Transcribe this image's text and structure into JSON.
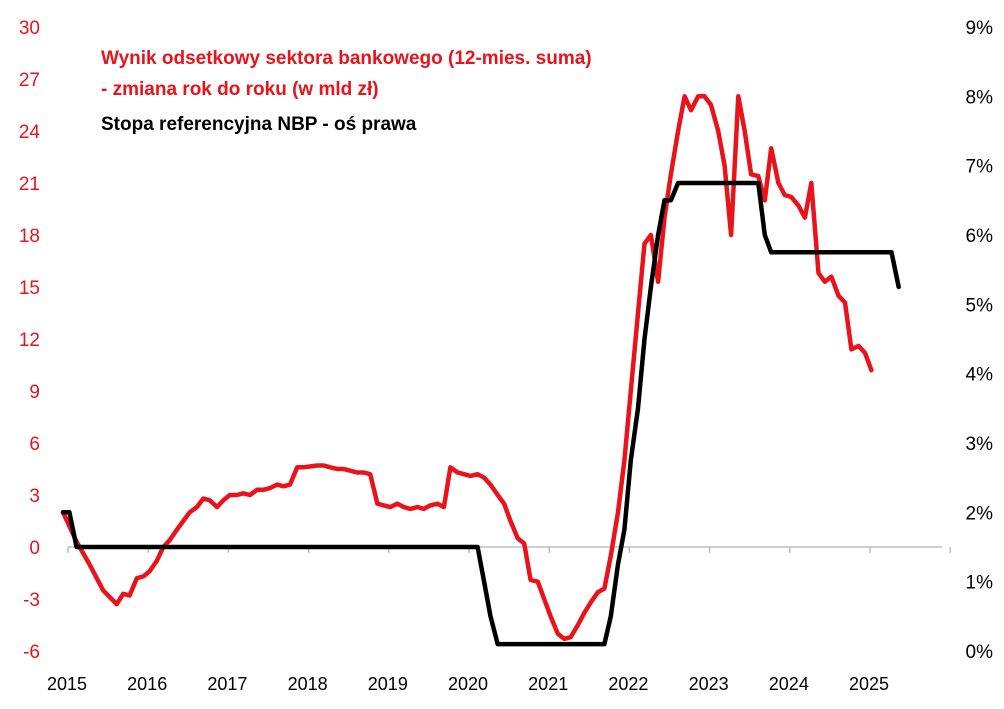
{
  "chart_data": {
    "type": "line",
    "title_lines": [
      "Wynik odsetkowy sektora bankowego (12-mies. suma)",
      "- zmiana rok do roku (w mld zł)",
      "Stopa referencyjna NBP - oś prawa"
    ],
    "x_range": [
      2015,
      2026
    ],
    "x_ticks": [
      "2015",
      "2016",
      "2017",
      "2018",
      "2019",
      "2020",
      "2021",
      "2022",
      "2023",
      "2024",
      "2025"
    ],
    "y_left": {
      "range": [
        -6,
        30
      ],
      "ticks": [
        "30",
        "27",
        "24",
        "21",
        "18",
        "15",
        "12",
        "9",
        "6",
        "3",
        "0",
        "-3",
        "-6"
      ]
    },
    "y_right": {
      "range": [
        0,
        9
      ],
      "ticks": [
        "9%",
        "8%",
        "7%",
        "6%",
        "5%",
        "4%",
        "3%",
        "2%",
        "1%",
        "0%"
      ]
    },
    "colors": {
      "series_red": "#e8131b",
      "series_black": "#000000",
      "axis": "#bfbfbf"
    },
    "series": [
      {
        "name": "Wynik odsetkowy sektora bankowego (12-mies. suma) - zmiana rok do roku (w mld zł)",
        "axis": "left",
        "color": "#e8131b",
        "points": [
          [
            2015.0,
            2.0
          ],
          [
            2015.17,
            0.3
          ],
          [
            2015.33,
            -1.0
          ],
          [
            2015.5,
            -2.5
          ],
          [
            2015.67,
            -3.3
          ],
          [
            2015.75,
            -2.7
          ],
          [
            2015.83,
            -2.8
          ],
          [
            2015.92,
            -1.8
          ],
          [
            2016.0,
            -1.7
          ],
          [
            2016.08,
            -1.4
          ],
          [
            2016.17,
            -0.8
          ],
          [
            2016.25,
            0.0
          ],
          [
            2016.33,
            0.4
          ],
          [
            2016.42,
            1.0
          ],
          [
            2016.5,
            1.5
          ],
          [
            2016.58,
            2.0
          ],
          [
            2016.67,
            2.3
          ],
          [
            2016.75,
            2.8
          ],
          [
            2016.83,
            2.7
          ],
          [
            2016.92,
            2.3
          ],
          [
            2017.0,
            2.7
          ],
          [
            2017.08,
            3.0
          ],
          [
            2017.17,
            3.0
          ],
          [
            2017.25,
            3.1
          ],
          [
            2017.33,
            3.0
          ],
          [
            2017.42,
            3.3
          ],
          [
            2017.5,
            3.3
          ],
          [
            2017.58,
            3.4
          ],
          [
            2017.67,
            3.6
          ],
          [
            2017.75,
            3.5
          ],
          [
            2017.83,
            3.6
          ],
          [
            2017.92,
            4.6
          ],
          [
            2018.0,
            4.6
          ],
          [
            2018.17,
            4.7
          ],
          [
            2018.25,
            4.7
          ],
          [
            2018.33,
            4.6
          ],
          [
            2018.42,
            4.5
          ],
          [
            2018.5,
            4.5
          ],
          [
            2018.58,
            4.4
          ],
          [
            2018.67,
            4.3
          ],
          [
            2018.75,
            4.3
          ],
          [
            2018.83,
            4.2
          ],
          [
            2018.92,
            2.5
          ],
          [
            2019.0,
            2.4
          ],
          [
            2019.08,
            2.3
          ],
          [
            2019.17,
            2.5
          ],
          [
            2019.25,
            2.3
          ],
          [
            2019.33,
            2.2
          ],
          [
            2019.42,
            2.3
          ],
          [
            2019.5,
            2.2
          ],
          [
            2019.58,
            2.4
          ],
          [
            2019.67,
            2.5
          ],
          [
            2019.75,
            2.3
          ],
          [
            2019.83,
            4.6
          ],
          [
            2019.92,
            4.3
          ],
          [
            2020.0,
            4.2
          ],
          [
            2020.08,
            4.1
          ],
          [
            2020.17,
            4.2
          ],
          [
            2020.25,
            4.0
          ],
          [
            2020.33,
            3.6
          ],
          [
            2020.42,
            3.0
          ],
          [
            2020.5,
            2.5
          ],
          [
            2020.58,
            1.5
          ],
          [
            2020.67,
            0.5
          ],
          [
            2020.75,
            0.2
          ],
          [
            2020.83,
            -1.9
          ],
          [
            2020.92,
            -2.0
          ],
          [
            2021.0,
            -3.0
          ],
          [
            2021.08,
            -4.0
          ],
          [
            2021.17,
            -5.0
          ],
          [
            2021.25,
            -5.3
          ],
          [
            2021.33,
            -5.2
          ],
          [
            2021.42,
            -4.5
          ],
          [
            2021.5,
            -3.8
          ],
          [
            2021.58,
            -3.2
          ],
          [
            2021.67,
            -2.6
          ],
          [
            2021.75,
            -2.4
          ],
          [
            2021.83,
            -0.5
          ],
          [
            2021.92,
            2.0
          ],
          [
            2022.0,
            5.0
          ],
          [
            2022.08,
            9.0
          ],
          [
            2022.17,
            13.5
          ],
          [
            2022.25,
            17.5
          ],
          [
            2022.33,
            18.0
          ],
          [
            2022.42,
            15.3
          ],
          [
            2022.5,
            19.0
          ],
          [
            2022.58,
            21.5
          ],
          [
            2022.67,
            24.0
          ],
          [
            2022.75,
            26.0
          ],
          [
            2022.83,
            25.2
          ],
          [
            2022.92,
            26.0
          ],
          [
            2023.0,
            26.0
          ],
          [
            2023.08,
            25.5
          ],
          [
            2023.17,
            24.0
          ],
          [
            2023.25,
            22.0
          ],
          [
            2023.33,
            18.0
          ],
          [
            2023.42,
            26.0
          ],
          [
            2023.5,
            24.0
          ],
          [
            2023.58,
            21.5
          ],
          [
            2023.67,
            21.4
          ],
          [
            2023.75,
            20.0
          ],
          [
            2023.83,
            23.0
          ],
          [
            2023.92,
            21.0
          ],
          [
            2024.0,
            20.3
          ],
          [
            2024.08,
            20.2
          ],
          [
            2024.17,
            19.7
          ],
          [
            2024.25,
            19.0
          ],
          [
            2024.33,
            21.0
          ],
          [
            2024.42,
            15.8
          ],
          [
            2024.5,
            15.3
          ],
          [
            2024.58,
            15.6
          ],
          [
            2024.67,
            14.5
          ],
          [
            2024.75,
            14.1
          ],
          [
            2024.83,
            11.4
          ],
          [
            2024.92,
            11.6
          ],
          [
            2025.0,
            11.2
          ],
          [
            2025.08,
            10.2
          ]
        ]
      },
      {
        "name": "Stopa referencyjna NBP - oś prawa",
        "axis": "right",
        "color": "#000000",
        "points": [
          [
            2015.0,
            2.0
          ],
          [
            2015.08,
            2.0
          ],
          [
            2015.17,
            1.5
          ],
          [
            2020.17,
            1.5
          ],
          [
            2020.25,
            1.0
          ],
          [
            2020.33,
            0.5
          ],
          [
            2020.42,
            0.1
          ],
          [
            2021.75,
            0.1
          ],
          [
            2021.83,
            0.5
          ],
          [
            2021.92,
            1.25
          ],
          [
            2022.0,
            1.75
          ],
          [
            2022.08,
            2.75
          ],
          [
            2022.17,
            3.5
          ],
          [
            2022.25,
            4.5
          ],
          [
            2022.33,
            5.25
          ],
          [
            2022.42,
            6.0
          ],
          [
            2022.5,
            6.5
          ],
          [
            2022.58,
            6.5
          ],
          [
            2022.67,
            6.75
          ],
          [
            2023.67,
            6.75
          ],
          [
            2023.75,
            6.0
          ],
          [
            2023.83,
            5.75
          ],
          [
            2025.33,
            5.75
          ],
          [
            2025.42,
            5.25
          ]
        ]
      }
    ]
  }
}
